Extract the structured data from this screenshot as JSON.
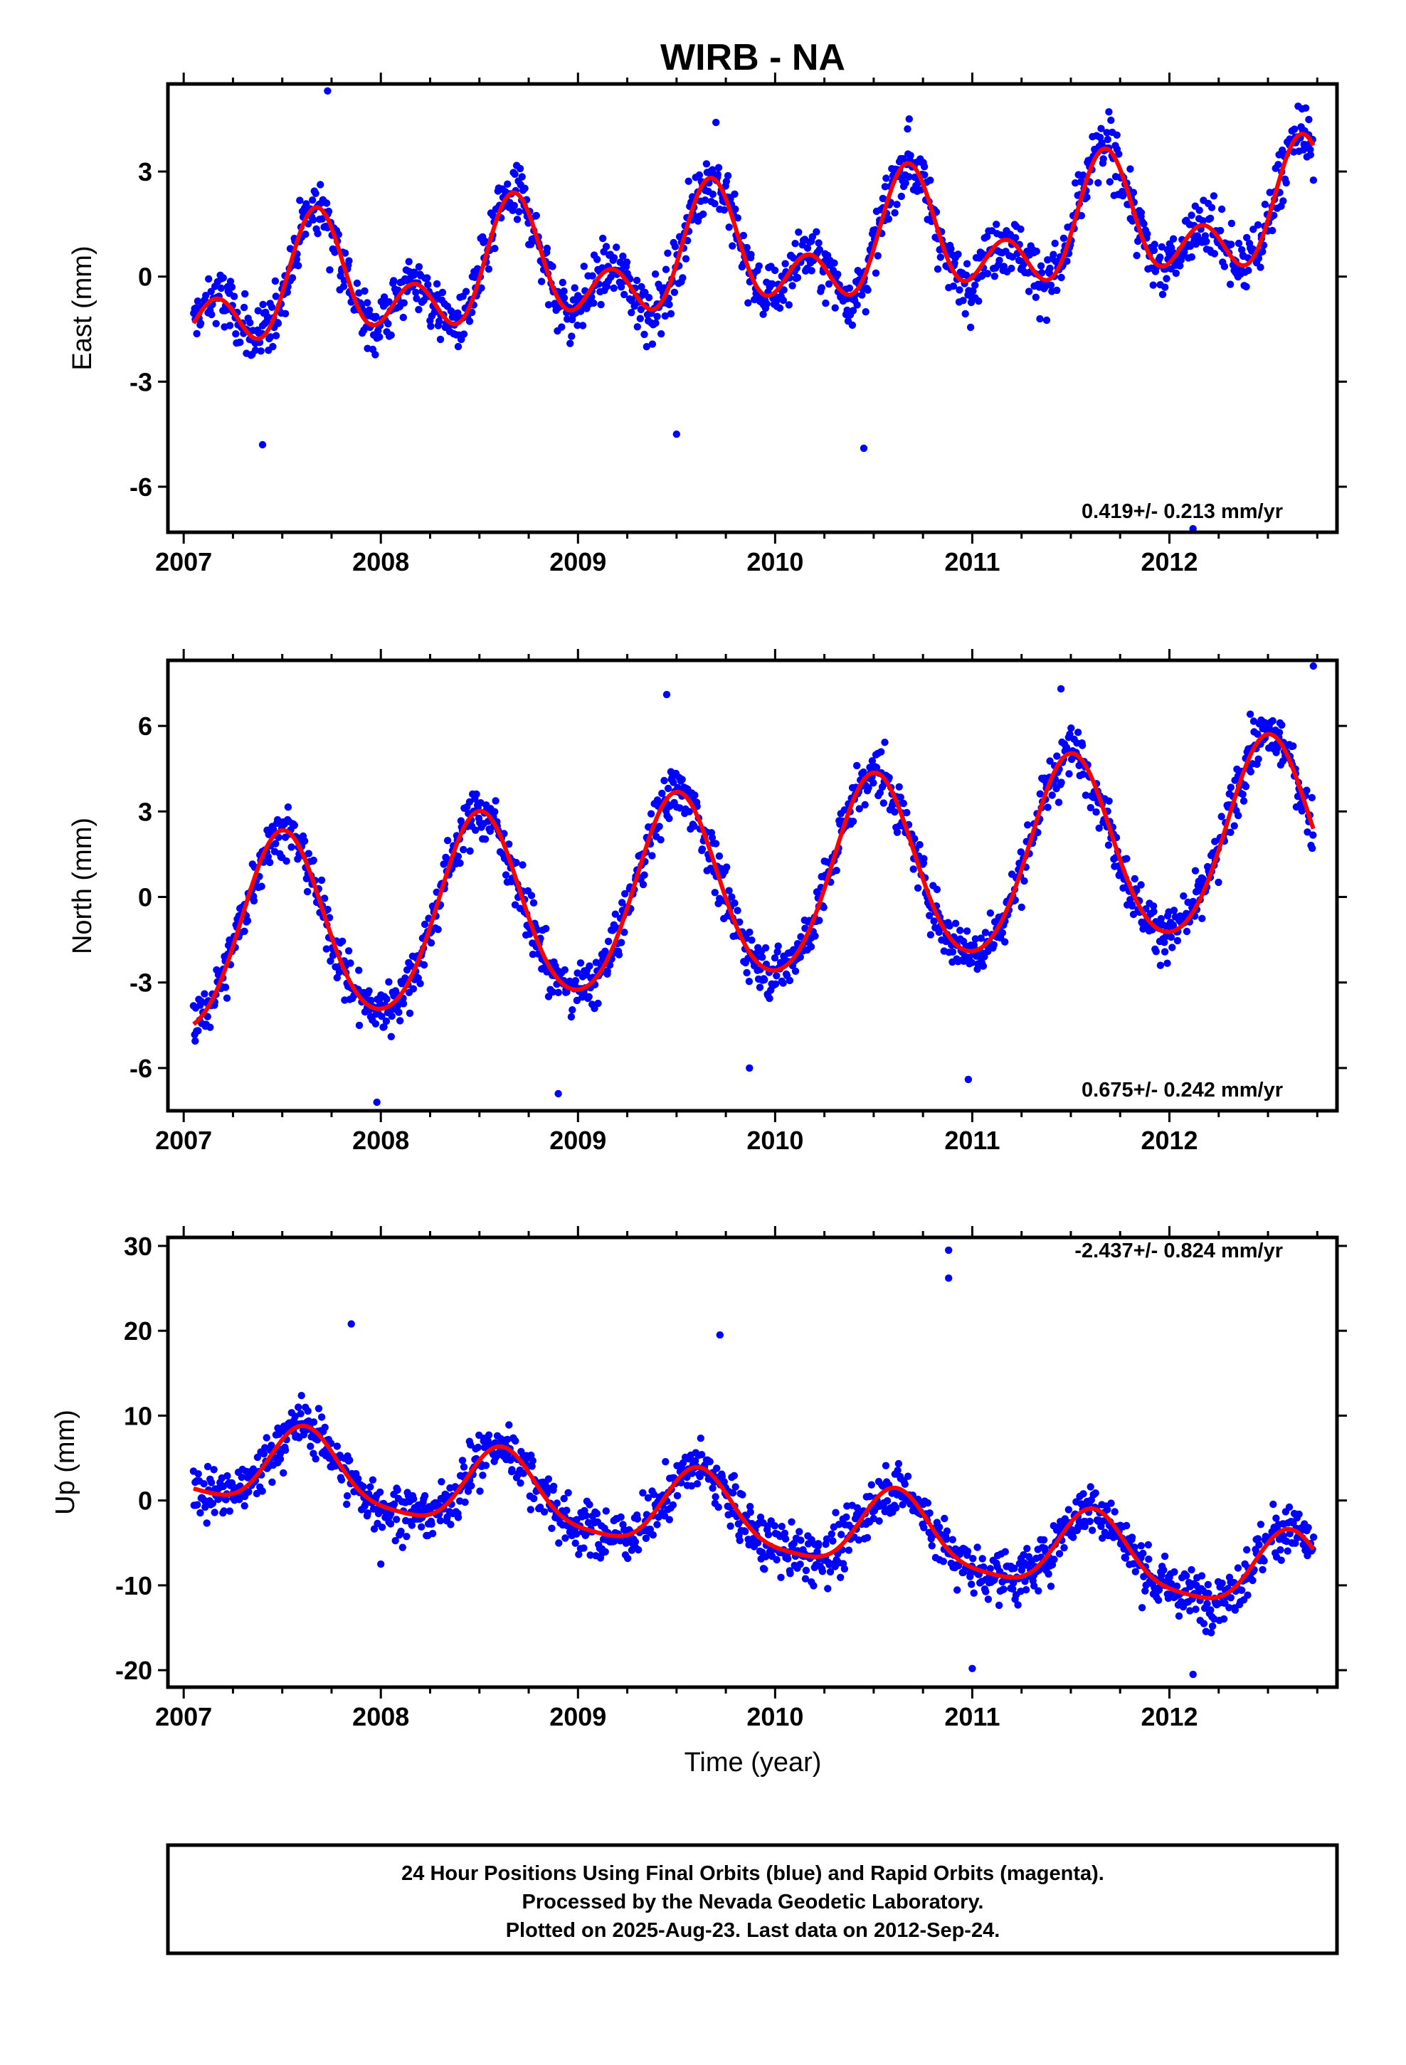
{
  "chart_data": {
    "type": "scatter",
    "title": "WIRB - NA",
    "xlabel": "Time (year)",
    "x_ticks": [
      "2007",
      "2008",
      "2009",
      "2010",
      "2011",
      "2012"
    ],
    "xlim": [
      2006.92,
      2012.85
    ],
    "grid": false,
    "colors": {
      "final_orbits": "#0000ff",
      "model_fit": "#ff0000",
      "rapid_orbits": "#ff00ff"
    },
    "panels": [
      {
        "component": "east",
        "ylabel": "East (mm)",
        "ylim": [
          -7.3,
          5.5
        ],
        "y_ticks": [
          "3",
          "0",
          "-3",
          "-6"
        ],
        "rate_label": "0.419+/- 0.213 mm/yr",
        "model": {
          "offset": -0.6,
          "rate": 0.419,
          "annual_amp": 1.2,
          "annual_peak": 2007.68,
          "semiannual_amp": 1.1,
          "semiannual_peak": 2007.17
        },
        "scatter_sd": 0.85,
        "outliers": [
          [
            2007.73,
            5.3
          ],
          [
            2010.68,
            4.5
          ],
          [
            2009.7,
            4.4
          ],
          [
            2009.5,
            -4.5
          ],
          [
            2010.45,
            -4.9
          ],
          [
            2007.4,
            -4.8
          ],
          [
            2012.12,
            -7.2
          ]
        ]
      },
      {
        "component": "north",
        "ylabel": "North (mm)",
        "ylim": [
          -7.5,
          8.3
        ],
        "y_ticks": [
          "6",
          "3",
          "0",
          "-3",
          "-6"
        ],
        "rate_label": "0.675+/- 0.242 mm/yr",
        "model": {
          "offset": -1.6,
          "rate": 0.675,
          "annual_amp": 3.3,
          "annual_peak": 2007.5,
          "semiannual_amp": 0.3,
          "semiannual_peak": 2007.0
        },
        "scatter_sd": 0.9,
        "outliers": [
          [
            2009.45,
            7.1
          ],
          [
            2011.45,
            7.3
          ],
          [
            2012.73,
            8.1
          ],
          [
            2007.98,
            -7.2
          ],
          [
            2008.9,
            -6.9
          ],
          [
            2010.98,
            -6.4
          ],
          [
            2009.87,
            -6.0
          ]
        ]
      },
      {
        "component": "up",
        "ylabel": "Up (mm)",
        "ylim": [
          -22,
          31
        ],
        "y_ticks": [
          "30",
          "20",
          "10",
          "0",
          "-10",
          "-20"
        ],
        "rate_label": "-2.437+/- 0.824 mm/yr",
        "model": {
          "offset": 4.8,
          "rate": -2.437,
          "annual_amp": 4.5,
          "annual_peak": 2007.62,
          "semiannual_amp": 1.0,
          "semiannual_peak": 2007.1
        },
        "scatter_sd": 3.0,
        "outliers": [
          [
            2010.88,
            29.5
          ],
          [
            2010.88,
            26.2
          ],
          [
            2009.72,
            19.5
          ],
          [
            2007.85,
            20.8
          ],
          [
            2012.12,
            -20.5
          ],
          [
            2011.0,
            -19.8
          ],
          [
            2008.0,
            -7.5
          ]
        ]
      }
    ]
  },
  "caption": {
    "line1": "24 Hour Positions Using Final Orbits (blue) and Rapid Orbits (magenta).",
    "line2": "Processed by the Nevada Geodetic Laboratory.",
    "line3": "Plotted on 2025-Aug-23. Last data on 2012-Sep-24."
  }
}
